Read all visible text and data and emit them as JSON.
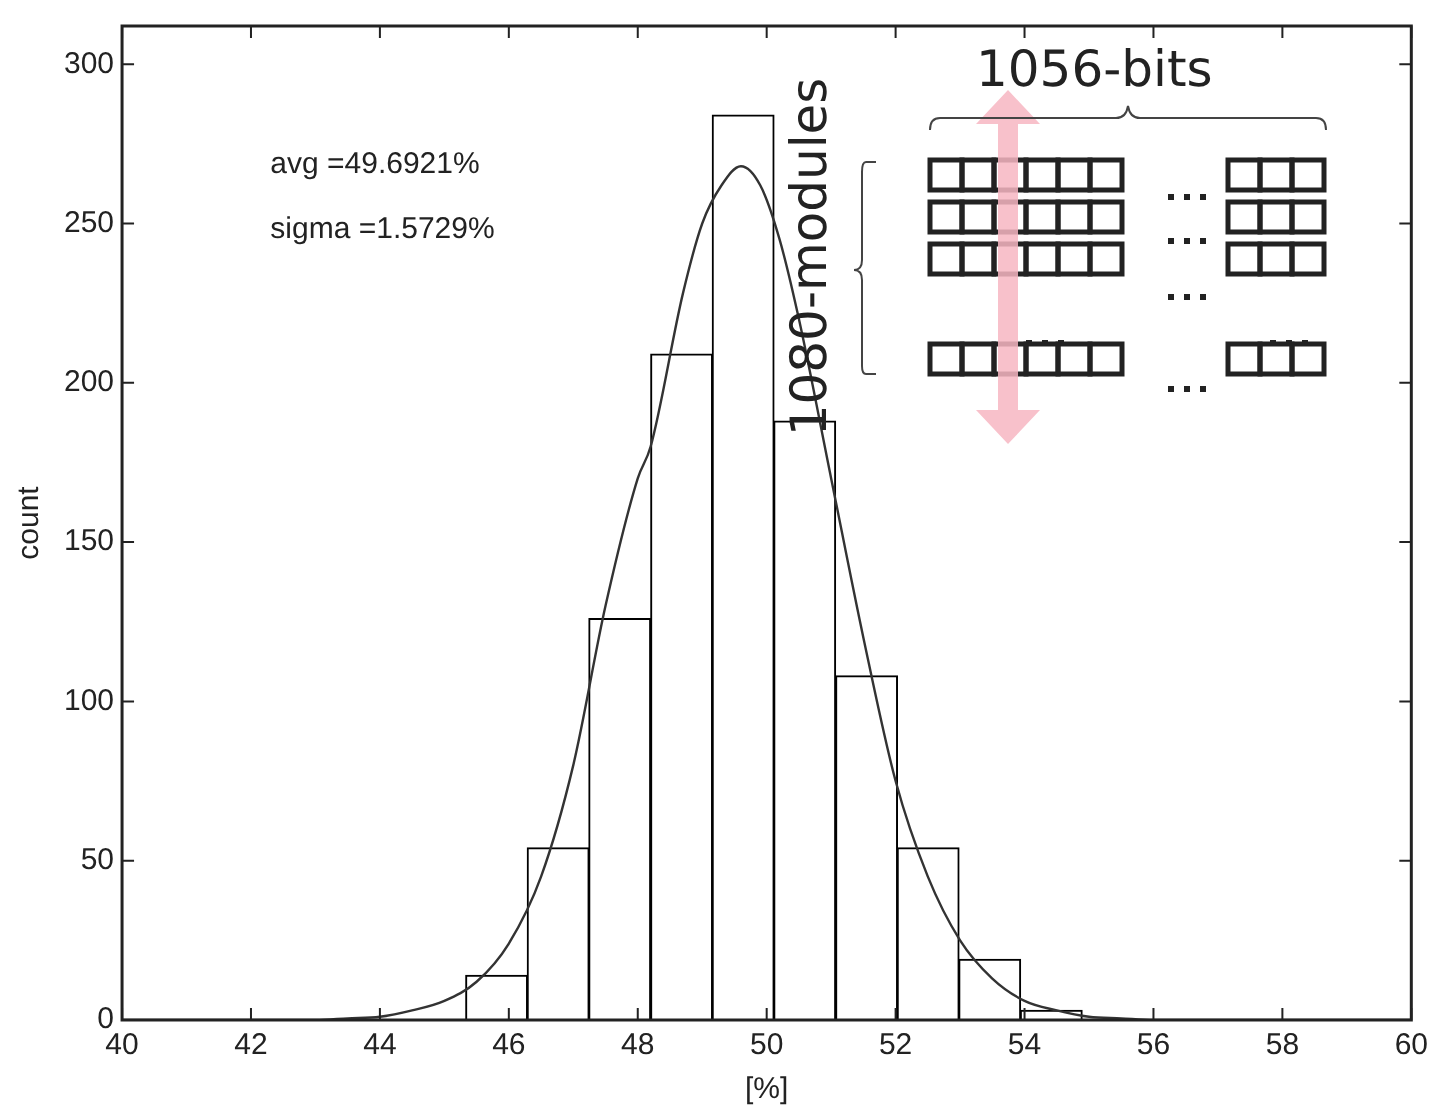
{
  "chart_data": {
    "type": "histogram",
    "xlabel": "[%]",
    "ylabel": "count",
    "color": "#ffffff",
    "bins": [
      45.33,
      46.29,
      47.24,
      48.2,
      49.16,
      50.11,
      51.07,
      52.03,
      52.98,
      53.94,
      54.89
    ],
    "values": [
      14,
      54,
      126,
      209,
      284,
      188,
      108,
      54,
      19,
      3
    ],
    "series": [
      {
        "type": "line",
        "color": "#333333",
        "x": [
          40,
          43,
          43.5,
          44,
          44.5,
          45,
          45.5,
          46,
          46.5,
          47,
          47.5,
          48,
          48.2,
          48.7,
          49,
          49.3,
          49.6,
          49.9,
          50.2,
          50.5,
          51,
          51.5,
          52,
          52.5,
          53,
          53.5,
          54,
          54.5,
          55,
          55.5,
          56,
          60
        ],
        "values": [
          0,
          0,
          0.5,
          1,
          3,
          6,
          12,
          24,
          45,
          80,
          130,
          170,
          180,
          228,
          250,
          262,
          268,
          262,
          245,
          220,
          170,
          120,
          75,
          45,
          25,
          13,
          6,
          3,
          1,
          0.5,
          0,
          0
        ]
      }
    ],
    "xlim": [
      40,
      60
    ],
    "xticks": [
      40,
      42,
      44,
      46,
      48,
      50,
      52,
      54,
      56,
      58,
      60
    ],
    "ylim": [
      0,
      312
    ],
    "yticks": [
      0,
      50,
      100,
      150,
      200,
      250,
      300
    ],
    "annotations": [
      "avg =49.6921%",
      "sigma =1.5729%",
      "1056-bits",
      "1080-modules"
    ]
  }
}
